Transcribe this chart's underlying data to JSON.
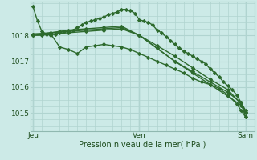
{
  "bg_color": "#cceae7",
  "grid_color": "#b0d4d0",
  "line_color": "#2d6a2d",
  "marker": "D",
  "marker_size": 2,
  "linewidth": 1.0,
  "xlabel": "Pression niveau de la mer( hPa )",
  "xtick_labels": [
    "Jeu",
    "Ven",
    "Sam"
  ],
  "xtick_positions": [
    0,
    24,
    48
  ],
  "ytick_labels": [
    "1015",
    "1016",
    "1017",
    "1018"
  ],
  "ytick_positions": [
    1015,
    1016,
    1017,
    1018
  ],
  "ylim": [
    1014.3,
    1019.3
  ],
  "xlim": [
    -0.5,
    50
  ],
  "series": [
    [
      0,
      1019.1,
      1,
      1018.55,
      2,
      1018.15,
      3,
      1018.05,
      4,
      1018.0,
      5,
      1018.05,
      6,
      1018.1,
      7,
      1018.15,
      8,
      1018.15,
      9,
      1018.2,
      10,
      1018.3,
      11,
      1018.4,
      12,
      1018.5,
      13,
      1018.55,
      14,
      1018.6,
      15,
      1018.65,
      16,
      1018.7,
      17,
      1018.8,
      18,
      1018.85,
      19,
      1018.9,
      20,
      1019.0,
      21,
      1019.0,
      22,
      1018.95,
      23,
      1018.85,
      24,
      1018.6,
      25,
      1018.55,
      26,
      1018.5,
      27,
      1018.4,
      28,
      1018.2,
      29,
      1018.1,
      30,
      1017.95,
      31,
      1017.8,
      32,
      1017.65,
      33,
      1017.5,
      34,
      1017.4,
      35,
      1017.3,
      36,
      1017.2,
      37,
      1017.1,
      38,
      1017.0,
      39,
      1016.9,
      40,
      1016.7,
      41,
      1016.55,
      42,
      1016.4,
      43,
      1016.2,
      44,
      1016.05,
      45,
      1015.9,
      46,
      1015.7,
      47,
      1015.4,
      48,
      1015.1
    ],
    [
      0,
      1018.05,
      2,
      1018.05,
      4,
      1018.1,
      6,
      1018.15,
      8,
      1018.2,
      12,
      1018.25,
      16,
      1018.3,
      20,
      1018.35,
      24,
      1018.0,
      28,
      1017.5,
      32,
      1017.0,
      36,
      1016.55,
      40,
      1016.1,
      44,
      1015.65,
      47,
      1015.3,
      48,
      1015.0
    ],
    [
      0,
      1018.0,
      2,
      1018.0,
      4,
      1018.05,
      6,
      1017.55,
      8,
      1017.45,
      10,
      1017.3,
      12,
      1017.55,
      14,
      1017.6,
      16,
      1017.65,
      18,
      1017.6,
      20,
      1017.55,
      22,
      1017.45,
      24,
      1017.3,
      26,
      1017.15,
      28,
      1017.0,
      30,
      1016.85,
      32,
      1016.7,
      34,
      1016.55,
      36,
      1016.35,
      38,
      1016.2,
      40,
      1016.1,
      42,
      1015.95,
      44,
      1015.7,
      46,
      1015.35,
      47,
      1015.1,
      48,
      1014.85
    ],
    [
      0,
      1018.0,
      4,
      1018.05,
      8,
      1018.1,
      12,
      1018.15,
      16,
      1018.2,
      20,
      1018.25,
      24,
      1018.0,
      28,
      1017.5,
      32,
      1017.0,
      36,
      1016.6,
      40,
      1016.2,
      44,
      1015.8,
      47,
      1015.4,
      48,
      1015.05
    ],
    [
      0,
      1018.05,
      4,
      1018.1,
      8,
      1018.15,
      12,
      1018.2,
      16,
      1018.25,
      20,
      1018.3,
      24,
      1018.0,
      28,
      1017.6,
      32,
      1017.2,
      36,
      1016.75,
      40,
      1016.3,
      44,
      1015.9,
      47,
      1015.35,
      48,
      1014.85
    ]
  ]
}
